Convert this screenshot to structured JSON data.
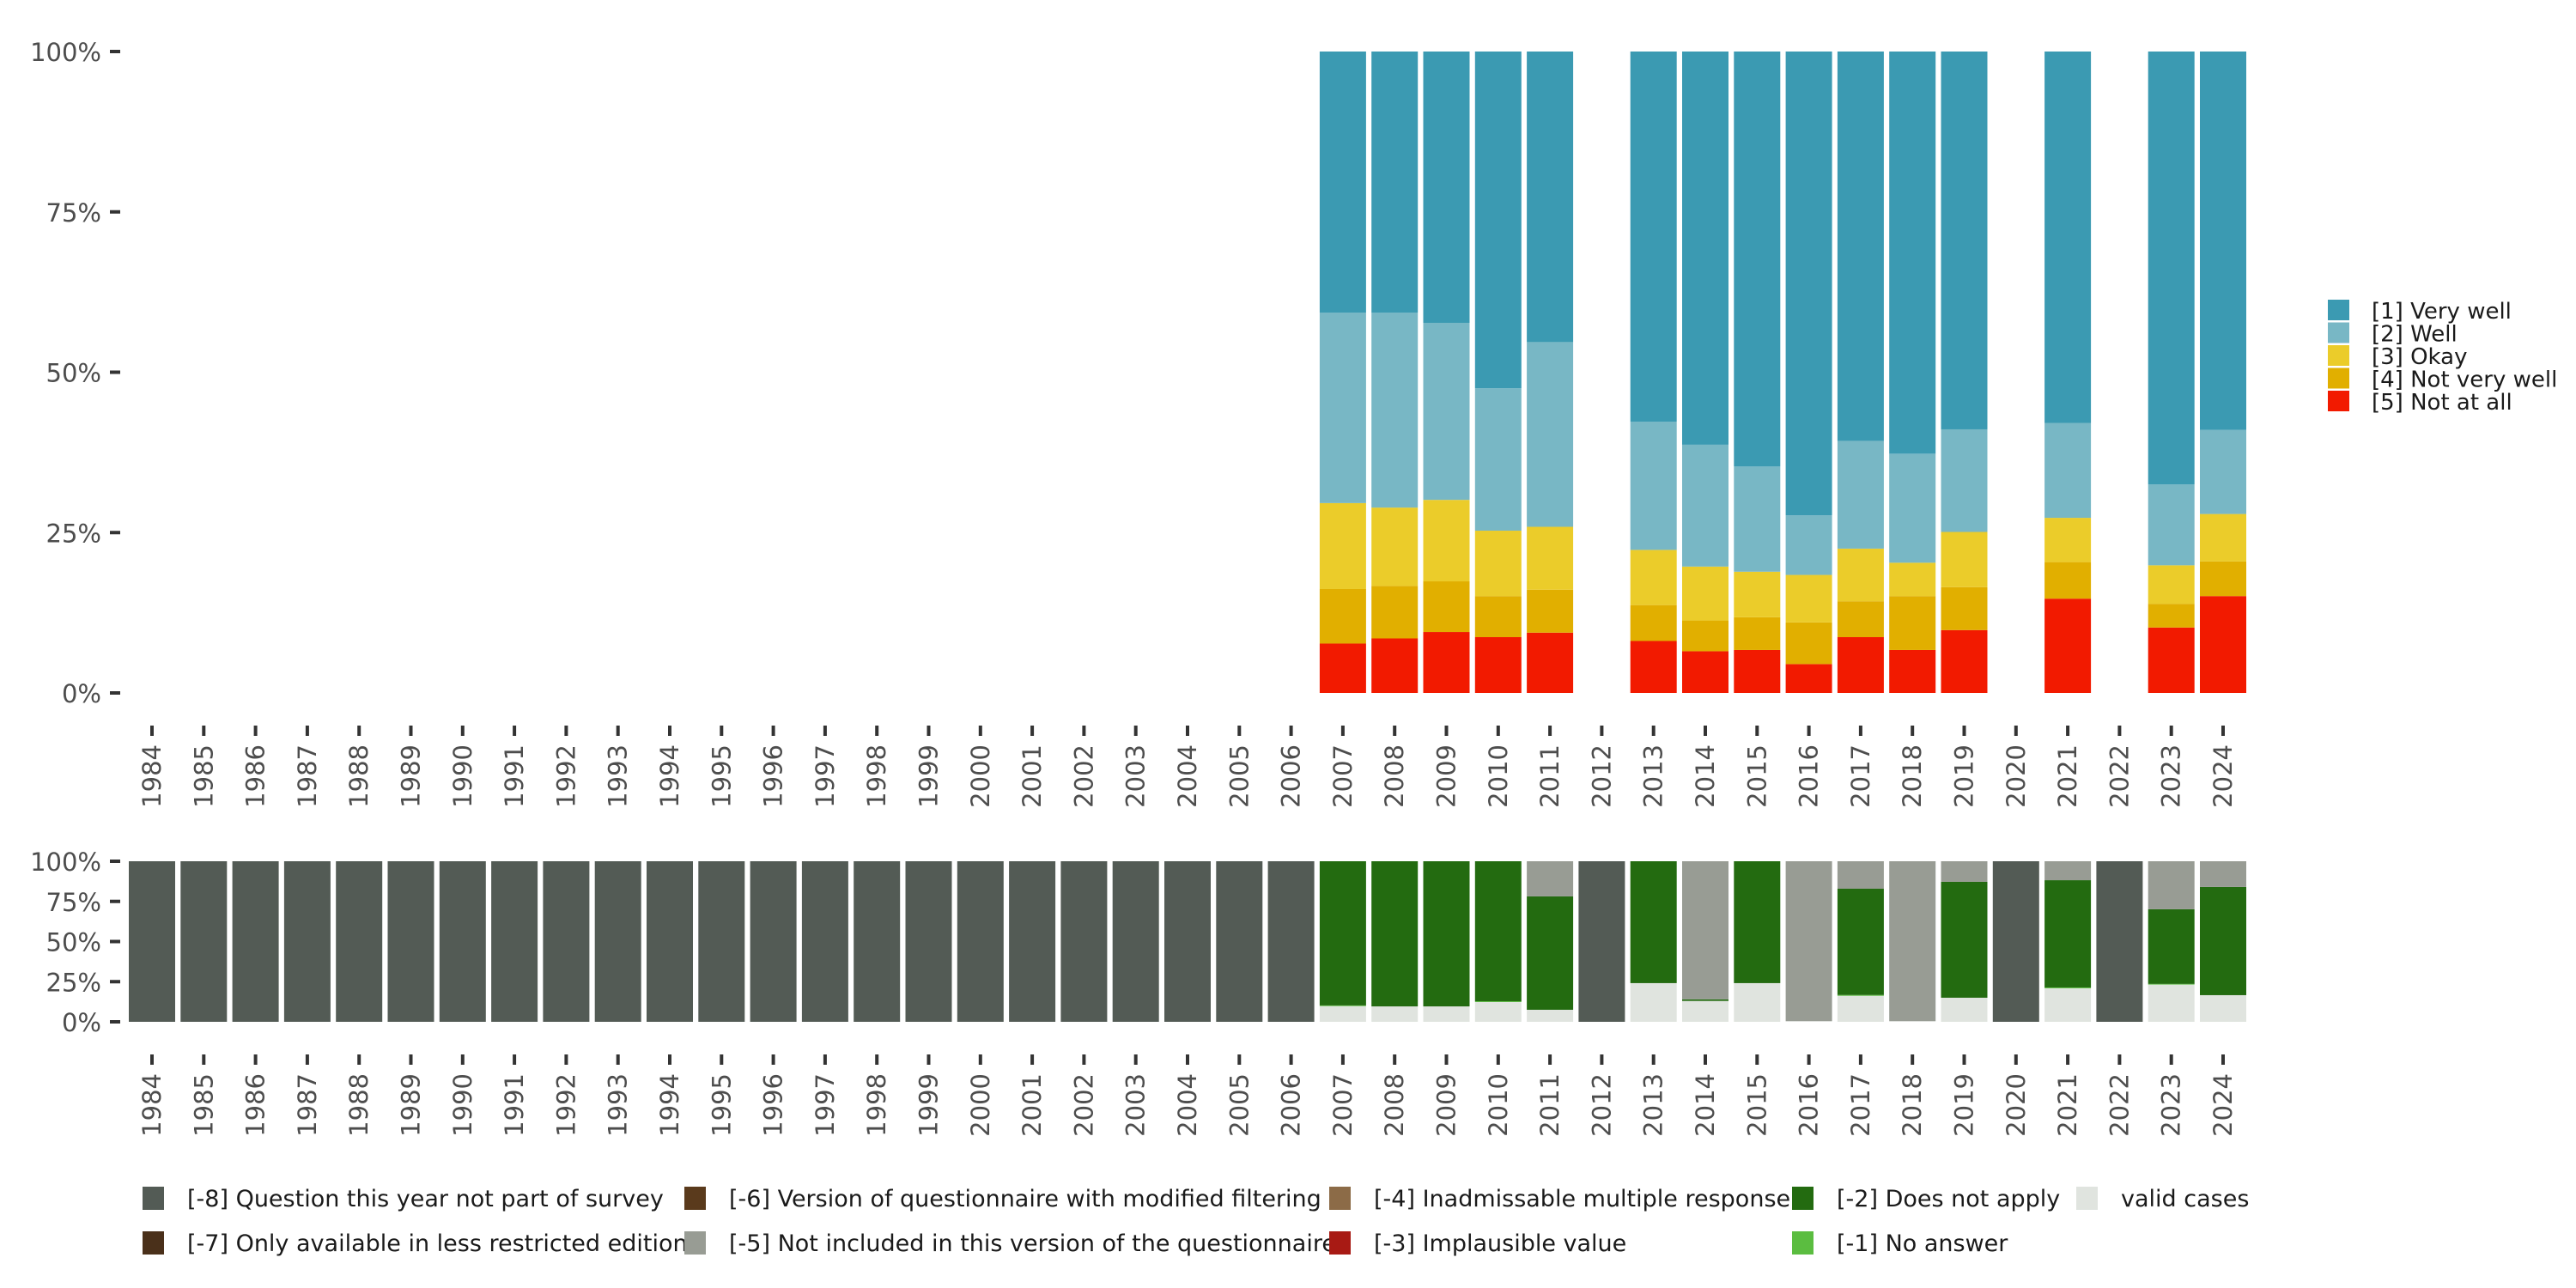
{
  "chart_data": [
    {
      "id": "responses",
      "type": "bar",
      "stacked": true,
      "normalized": true,
      "title": "",
      "xlabel": "",
      "ylabel": "",
      "ylim": [
        0,
        100
      ],
      "y_ticks": [
        "0%",
        "25%",
        "50%",
        "75%",
        "100%"
      ],
      "y_tick_values": [
        0,
        25,
        50,
        75,
        100
      ],
      "grid": false,
      "legend_position": "right",
      "categories": [
        "1984",
        "1985",
        "1986",
        "1987",
        "1988",
        "1989",
        "1990",
        "1991",
        "1992",
        "1993",
        "1994",
        "1995",
        "1996",
        "1997",
        "1998",
        "1999",
        "2000",
        "2001",
        "2002",
        "2003",
        "2004",
        "2005",
        "2006",
        "2007",
        "2008",
        "2009",
        "2010",
        "2011",
        "2012",
        "2013",
        "2014",
        "2015",
        "2016",
        "2017",
        "2018",
        "2019",
        "2020",
        "2021",
        "2022",
        "2023",
        "2024"
      ],
      "series": [
        {
          "name": "[5] Not at all",
          "color": "#f21a00",
          "values": [
            null,
            null,
            null,
            null,
            null,
            null,
            null,
            null,
            null,
            null,
            null,
            null,
            null,
            null,
            null,
            null,
            null,
            null,
            null,
            null,
            null,
            null,
            null,
            7.7,
            8.5,
            9.5,
            8.7,
            9.4,
            null,
            8.1,
            6.5,
            6.7,
            4.5,
            8.7,
            6.7,
            9.8,
            null,
            14.7,
            null,
            10.2,
            15.1
          ]
        },
        {
          "name": "[4] Not very well",
          "color": "#e1af00",
          "values": [
            null,
            null,
            null,
            null,
            null,
            null,
            null,
            null,
            null,
            null,
            null,
            null,
            null,
            null,
            null,
            null,
            null,
            null,
            null,
            null,
            null,
            null,
            null,
            8.5,
            8.2,
            7.9,
            6.4,
            6.7,
            null,
            5.6,
            4.8,
            5.1,
            6.5,
            5.6,
            8.4,
            6.7,
            null,
            5.7,
            null,
            3.7,
            5.4
          ]
        },
        {
          "name": "[3] Okay",
          "color": "#ebcc2a",
          "values": [
            null,
            null,
            null,
            null,
            null,
            null,
            null,
            null,
            null,
            null,
            null,
            null,
            null,
            null,
            null,
            null,
            null,
            null,
            null,
            null,
            null,
            null,
            null,
            13.4,
            12.2,
            12.7,
            10.2,
            9.8,
            null,
            8.6,
            8.4,
            7.1,
            7.4,
            8.2,
            5.2,
            8.6,
            null,
            6.9,
            null,
            6.0,
            7.4
          ]
        },
        {
          "name": "[2] Well",
          "color": "#78b7c5",
          "values": [
            null,
            null,
            null,
            null,
            null,
            null,
            null,
            null,
            null,
            null,
            null,
            null,
            null,
            null,
            null,
            null,
            null,
            null,
            null,
            null,
            null,
            null,
            null,
            29.7,
            30.4,
            27.6,
            22.2,
            28.8,
            null,
            20.0,
            19.0,
            16.4,
            9.3,
            16.8,
            17.0,
            16.0,
            null,
            14.8,
            null,
            12.6,
            13.1
          ]
        },
        {
          "name": "[1] Very well",
          "color": "#3b9ab2",
          "values": [
            null,
            null,
            null,
            null,
            null,
            null,
            null,
            null,
            null,
            null,
            null,
            null,
            null,
            null,
            null,
            null,
            null,
            null,
            null,
            null,
            null,
            null,
            null,
            40.7,
            40.7,
            42.3,
            52.5,
            45.3,
            null,
            57.7,
            61.3,
            64.7,
            72.3,
            60.7,
            62.7,
            58.9,
            null,
            57.9,
            null,
            67.5,
            59.0
          ]
        }
      ],
      "legend": [
        "[1] Very well",
        "[2] Well",
        "[3] Okay",
        "[4] Not very well",
        "[5] Not at all"
      ]
    },
    {
      "id": "missings",
      "type": "bar",
      "stacked": true,
      "normalized": true,
      "title": "",
      "xlabel": "",
      "ylabel": "",
      "ylim": [
        0,
        100
      ],
      "y_ticks": [
        "0%",
        "25%",
        "50%",
        "75%",
        "100%"
      ],
      "y_tick_values": [
        0,
        25,
        50,
        75,
        100
      ],
      "grid": false,
      "legend_position": "bottom",
      "categories": [
        "1984",
        "1985",
        "1986",
        "1987",
        "1988",
        "1989",
        "1990",
        "1991",
        "1992",
        "1993",
        "1994",
        "1995",
        "1996",
        "1997",
        "1998",
        "1999",
        "2000",
        "2001",
        "2002",
        "2003",
        "2004",
        "2005",
        "2006",
        "2007",
        "2008",
        "2009",
        "2010",
        "2011",
        "2012",
        "2013",
        "2014",
        "2015",
        "2016",
        "2017",
        "2018",
        "2019",
        "2020",
        "2021",
        "2022",
        "2023",
        "2024"
      ],
      "series": [
        {
          "name": "valid cases",
          "color": "#e0e4df",
          "values": [
            0,
            0,
            0,
            0,
            0,
            0,
            0,
            0,
            0,
            0,
            0,
            0,
            0,
            0,
            0,
            0,
            0,
            0,
            0,
            0,
            0,
            0,
            0,
            9.8,
            9.6,
            9.6,
            12.3,
            7.5,
            0,
            24.1,
            13.0,
            24.1,
            0.5,
            16.2,
            0.5,
            15.0,
            0,
            20.9,
            0,
            23.2,
            16.6
          ]
        },
        {
          "name": "[-1] No answer",
          "color": "#5bbd40",
          "values": [
            0,
            0,
            0,
            0,
            0,
            0,
            0,
            0,
            0,
            0,
            0,
            0,
            0,
            0,
            0,
            0,
            0,
            0,
            0,
            0,
            0,
            0,
            0,
            0.4,
            0,
            0,
            0.5,
            0,
            0,
            0,
            0,
            0,
            0,
            0.5,
            0,
            0,
            0,
            0.5,
            0,
            0.4,
            0
          ]
        },
        {
          "name": "[-2] Does not apply",
          "color": "#236b10",
          "values": [
            0,
            0,
            0,
            0,
            0,
            0,
            0,
            0,
            0,
            0,
            0,
            0,
            0,
            0,
            0,
            0,
            0,
            0,
            0,
            0,
            0,
            0,
            0,
            89.8,
            90.4,
            90.4,
            87.2,
            70.6,
            0,
            75.9,
            1.0,
            75.9,
            0,
            66.2,
            0,
            72.2,
            0,
            66.8,
            0,
            46.5,
            67.4
          ]
        },
        {
          "name": "[-3] Implausible value",
          "color": "#a81a14",
          "values": [
            0,
            0,
            0,
            0,
            0,
            0,
            0,
            0,
            0,
            0,
            0,
            0,
            0,
            0,
            0,
            0,
            0,
            0,
            0,
            0,
            0,
            0,
            0,
            0,
            0,
            0,
            0,
            0,
            0,
            0,
            0,
            0,
            0,
            0,
            0,
            0,
            0,
            0,
            0,
            0,
            0
          ]
        },
        {
          "name": "[-4] Inadmissable multiple response",
          "color": "#8c6b47",
          "values": [
            0,
            0,
            0,
            0,
            0,
            0,
            0,
            0,
            0,
            0,
            0,
            0,
            0,
            0,
            0,
            0,
            0,
            0,
            0,
            0,
            0,
            0,
            0,
            0,
            0,
            0,
            0,
            0,
            0,
            0,
            0,
            0,
            0,
            0,
            0,
            0,
            0,
            0,
            0,
            0,
            0
          ]
        },
        {
          "name": "[-5] Not included in this version of the questionnaire",
          "color": "#989c94",
          "values": [
            0,
            0,
            0,
            0,
            0,
            0,
            0,
            0,
            0,
            0,
            0,
            0,
            0,
            0,
            0,
            0,
            0,
            0,
            0,
            0,
            0,
            0,
            0,
            0,
            0,
            0,
            0,
            21.9,
            0,
            0,
            86.0,
            0,
            99.5,
            17.1,
            99.5,
            12.8,
            0,
            11.8,
            0,
            29.9,
            16.0
          ]
        },
        {
          "name": "[-6] Version of questionnaire with modified filtering",
          "color": "#5a3a1c",
          "values": [
            0,
            0,
            0,
            0,
            0,
            0,
            0,
            0,
            0,
            0,
            0,
            0,
            0,
            0,
            0,
            0,
            0,
            0,
            0,
            0,
            0,
            0,
            0,
            0,
            0,
            0,
            0,
            0,
            0,
            0,
            0,
            0,
            0,
            0,
            0,
            0,
            0,
            0,
            0,
            0,
            0
          ]
        },
        {
          "name": "[-7] Only available in less restricted edition",
          "color": "#4a301a",
          "values": [
            0,
            0,
            0,
            0,
            0,
            0,
            0,
            0,
            0,
            0,
            0,
            0,
            0,
            0,
            0,
            0,
            0,
            0,
            0,
            0,
            0,
            0,
            0,
            0,
            0,
            0,
            0,
            0,
            0,
            0,
            0,
            0,
            0,
            0,
            0,
            0,
            0,
            0,
            0,
            0,
            0
          ]
        },
        {
          "name": "[-8] Question this year not part of survey",
          "color": "#535b55",
          "values": [
            100,
            100,
            100,
            100,
            100,
            100,
            100,
            100,
            100,
            100,
            100,
            100,
            100,
            100,
            100,
            100,
            100,
            100,
            100,
            100,
            100,
            100,
            100,
            0,
            0,
            0,
            0,
            0,
            100,
            0,
            0,
            0,
            0,
            0,
            0,
            0,
            100,
            0,
            100,
            0,
            0
          ]
        }
      ],
      "legend": [
        {
          "label": "[-8] Question this year not part of survey",
          "color": "#535b55"
        },
        {
          "label": "[-7] Only available in less restricted edition",
          "color": "#4a301a"
        },
        {
          "label": "[-6] Version of questionnaire with modified filtering",
          "color": "#5a3a1c"
        },
        {
          "label": "[-5] Not included in this version of the questionnaire",
          "color": "#989c94"
        },
        {
          "label": "[-4] Inadmissable multiple response",
          "color": "#8c6b47"
        },
        {
          "label": "[-3] Implausible value",
          "color": "#a81a14"
        },
        {
          "label": "[-2] Does not apply",
          "color": "#236b10"
        },
        {
          "label": "[-1] No answer",
          "color": "#5bbd40"
        },
        {
          "label": "valid cases",
          "color": "#e0e4df"
        }
      ]
    }
  ]
}
